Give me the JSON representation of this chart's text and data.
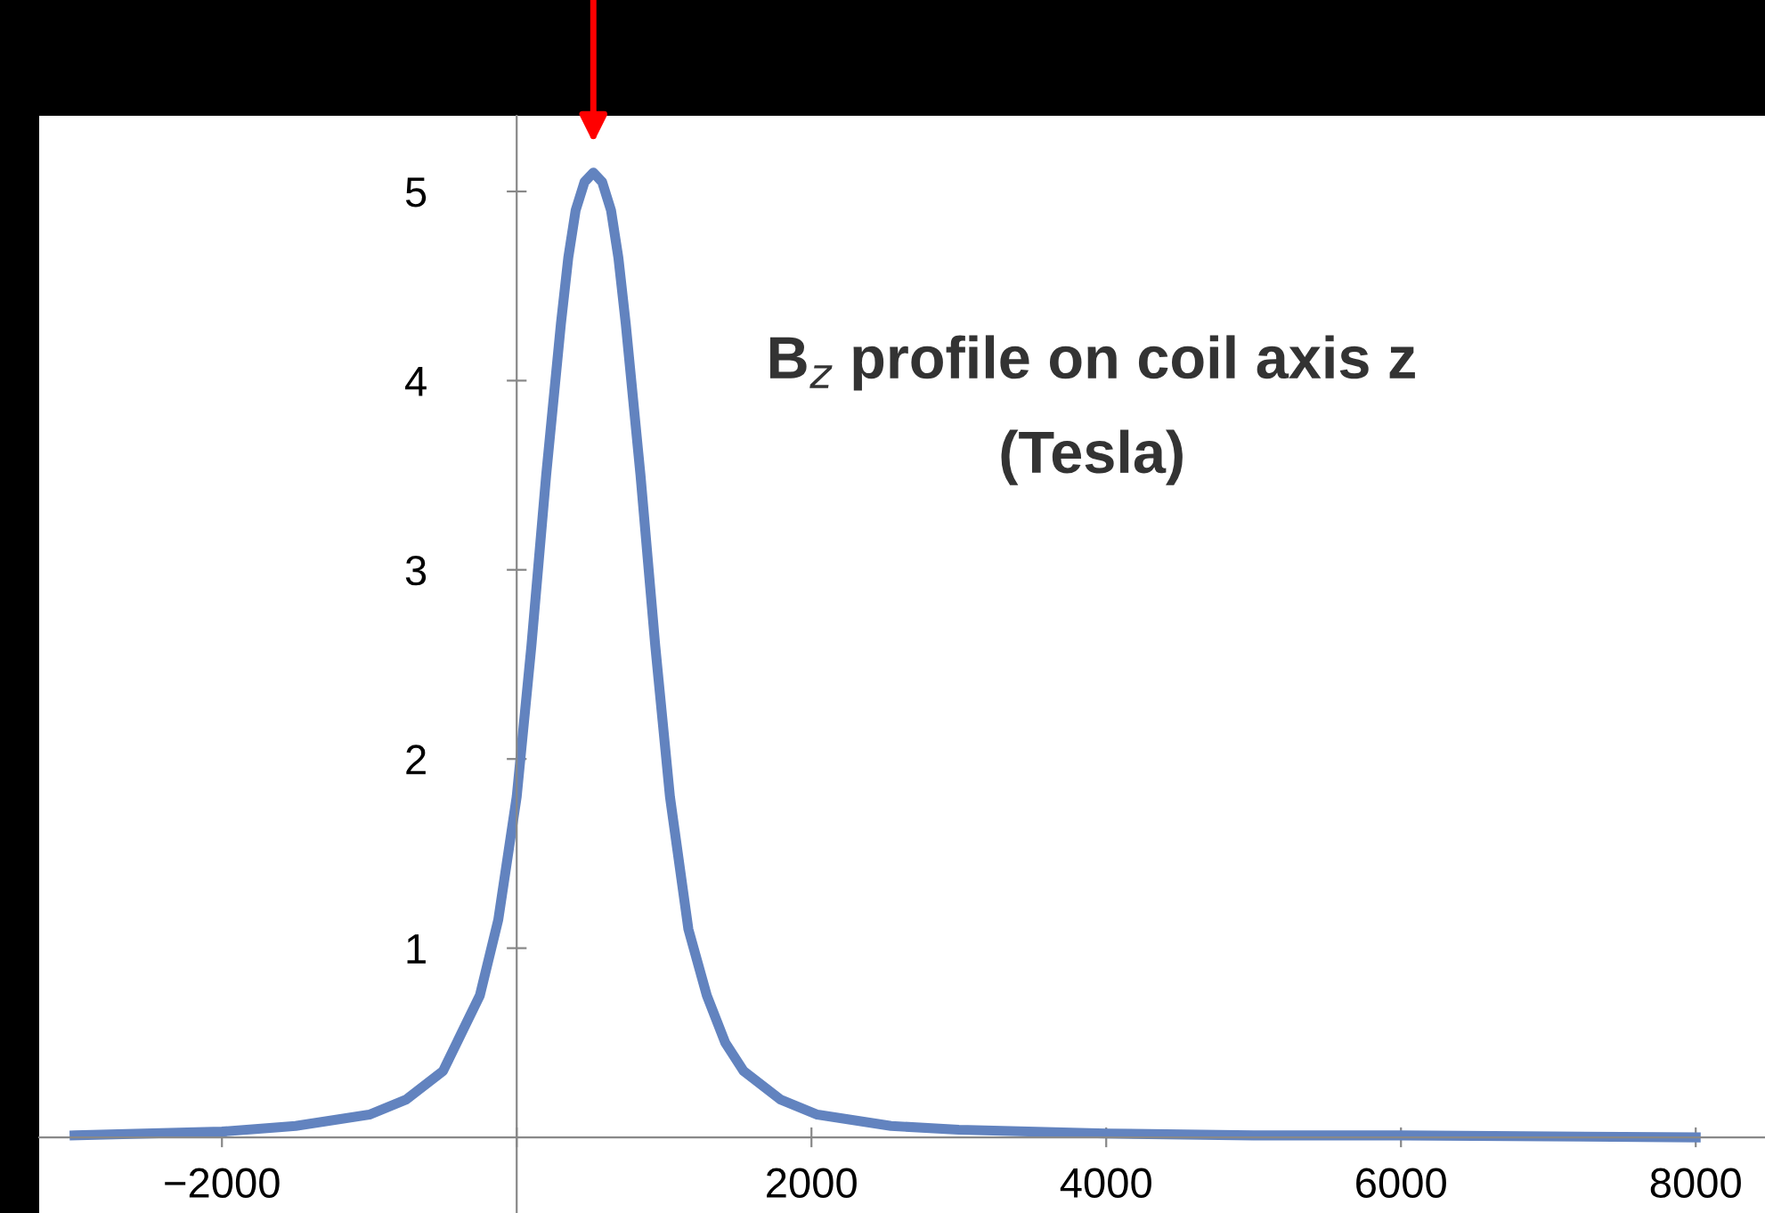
{
  "chart_data": {
    "type": "line",
    "title": "B$_{z}$ profile on coil axis z\n(Tesla)",
    "x": [
      -3000,
      -2000,
      -1500,
      -1000,
      -750,
      -500,
      -250,
      -125,
      0,
      50,
      100,
      150,
      200,
      250,
      300,
      350,
      400,
      460,
      520,
      580,
      640,
      690,
      740,
      790,
      840,
      890,
      940,
      990,
      1040,
      1165,
      1290,
      1415,
      1540,
      1790,
      2040,
      2540,
      3000,
      4000,
      5000,
      6000,
      8000
    ],
    "series": [
      {
        "color": "#6283bf",
        "values": [
          0.01,
          0.03,
          0.06,
          0.12,
          0.2,
          0.35,
          0.75,
          1.15,
          1.8,
          2.2,
          2.6,
          3.05,
          3.5,
          3.9,
          4.3,
          4.65,
          4.9,
          5.05,
          5.1,
          5.05,
          4.9,
          4.65,
          4.3,
          3.9,
          3.5,
          3.05,
          2.6,
          2.2,
          1.8,
          1.1,
          0.75,
          0.5,
          0.35,
          0.2,
          0.12,
          0.06,
          0.04,
          0.02,
          0.01,
          0.01,
          0
        ]
      }
    ],
    "xlim": [
      -3240,
      8470
    ],
    "ylim": [
      -0.4,
      5.4
    ],
    "xticks": [
      -2000,
      {
        "value": 0,
        "label": null
      },
      2000,
      4000,
      6000,
      8000
    ],
    "yticks": [
      1,
      2,
      3,
      4,
      5
    ],
    "grid": false,
    "legend": false,
    "marker": "none",
    "line_style": "solid"
  }
}
